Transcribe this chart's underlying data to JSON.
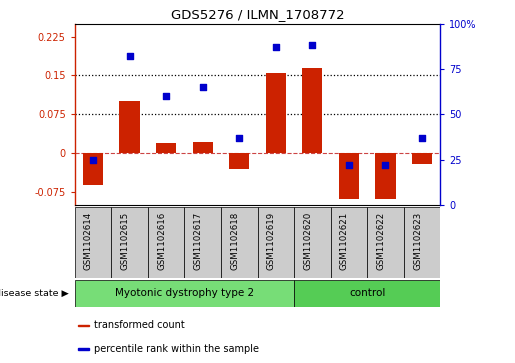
{
  "title": "GDS5276 / ILMN_1708772",
  "samples": [
    "GSM1102614",
    "GSM1102615",
    "GSM1102616",
    "GSM1102617",
    "GSM1102618",
    "GSM1102619",
    "GSM1102620",
    "GSM1102621",
    "GSM1102622",
    "GSM1102623"
  ],
  "red_bars": [
    -0.061,
    0.1,
    0.02,
    0.022,
    -0.03,
    0.155,
    0.165,
    -0.088,
    -0.088,
    -0.02
  ],
  "blue_dots": [
    25,
    82,
    60,
    65,
    37,
    87,
    88,
    22,
    22,
    37
  ],
  "ylim_left": [
    -0.1,
    0.25
  ],
  "ylim_right": [
    0,
    100
  ],
  "yticks_left": [
    -0.075,
    0,
    0.075,
    0.15,
    0.225
  ],
  "yticks_right": [
    0,
    25,
    50,
    75,
    100
  ],
  "ytick_labels_left": [
    "-0.075",
    "0",
    "0.075",
    "0.15",
    "0.225"
  ],
  "ytick_labels_right": [
    "0",
    "25",
    "50",
    "75",
    "100%"
  ],
  "hlines": [
    0.075,
    0.15
  ],
  "bar_color": "#CC2200",
  "dot_color": "#0000CC",
  "disease_groups": [
    {
      "label": "Myotonic dystrophy type 2",
      "start": 0,
      "end": 6,
      "color": "#77DD77"
    },
    {
      "label": "control",
      "start": 6,
      "end": 10,
      "color": "#55CC55"
    }
  ],
  "disease_state_label": "disease state",
  "legend_items": [
    {
      "color": "#CC2200",
      "label": "transformed count"
    },
    {
      "color": "#0000CC",
      "label": "percentile rank within the sample"
    }
  ],
  "bar_width": 0.55,
  "zero_line_color": "#CC4444",
  "label_box_color": "#CCCCCC",
  "n_samples": 10,
  "disease_split": 6
}
